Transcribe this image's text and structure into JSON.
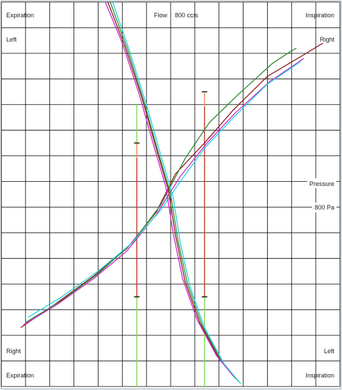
{
  "labels": {
    "top_left": "Expiration",
    "top_center_title": "Flow",
    "top_center_value": "800 cc/s",
    "top_right": "Inspiration",
    "left_upper": "Left",
    "right_upper": "Right",
    "pressure_title": "Pressure",
    "pressure_value": "800 Pa",
    "bottom_left_upper": "Right",
    "bottom_right_upper": "Left",
    "bottom_left": "Expiration",
    "bottom_right": "Inspiration"
  },
  "colors": {
    "background": "#ffffff",
    "grid": "#000000",
    "axis_minor": "#7ed957",
    "marker_red": "#cc2222",
    "marker_orange": "#ff9966",
    "marker_black": "#111111"
  },
  "chart_data": {
    "type": "line",
    "title": "",
    "xlabel": "Pressure",
    "ylabel": "Flow",
    "x_unit_per_division": "800 Pa",
    "y_unit_per_division": "800 cc/s",
    "grid": true,
    "x_divisions": 14,
    "y_divisions": 15,
    "x_range": [
      -7,
      7
    ],
    "y_range": [
      -7.5,
      7.5
    ],
    "series": [
      {
        "color": "#8b1a1a",
        "x": [
          -6.2,
          -4.8,
          -3.2,
          -1.8,
          -0.6,
          0.2,
          1.4,
          2.6,
          4.0,
          5.6,
          6.3
        ],
        "y": [
          -5.2,
          -4.3,
          -3.2,
          -2.1,
          -0.7,
          0.8,
          2.0,
          3.3,
          4.6,
          5.5,
          5.9
        ]
      },
      {
        "color": "#2e8b2e",
        "x": [
          -6.0,
          -4.6,
          -3.0,
          -1.6,
          -0.4,
          0.6,
          1.6,
          2.8,
          4.2,
          5.0,
          5.2
        ],
        "y": [
          -5.0,
          -4.2,
          -3.1,
          -1.9,
          -0.4,
          1.4,
          2.8,
          3.9,
          5.1,
          5.6,
          5.7
        ]
      },
      {
        "color": "#cc22cc",
        "x": [
          -6.1,
          -4.7,
          -3.2,
          -1.8,
          -0.6,
          0.4,
          1.5,
          2.7,
          4.1,
          5.2,
          5.5
        ],
        "y": [
          -5.1,
          -4.3,
          -3.3,
          -2.2,
          -0.8,
          0.7,
          2.0,
          3.2,
          4.4,
          5.1,
          5.3
        ]
      },
      {
        "color": "#22d0e0",
        "x": [
          -5.9,
          -4.5,
          -3.0,
          -1.6,
          -0.4,
          0.4,
          1.4,
          2.6,
          4.0,
          5.1,
          5.4
        ],
        "y": [
          -4.8,
          -4.0,
          -3.0,
          -1.9,
          -0.6,
          0.5,
          1.8,
          3.0,
          4.3,
          5.0,
          5.2
        ]
      },
      {
        "color": "#8b1a1a",
        "x": [
          -2.6,
          -1.9,
          -1.2,
          -0.6,
          -0.1,
          0.2,
          0.6,
          1.2,
          2.0,
          2.7
        ],
        "y": [
          7.5,
          5.8,
          3.8,
          1.8,
          0.2,
          -1.6,
          -3.4,
          -5.0,
          -6.4,
          -7.2
        ]
      },
      {
        "color": "#2e8b2e",
        "x": [
          -2.5,
          -1.8,
          -1.1,
          -0.5,
          0.0,
          0.3,
          0.7,
          1.3,
          2.1,
          2.8
        ],
        "y": [
          7.5,
          5.7,
          3.6,
          1.6,
          0.0,
          -1.8,
          -3.5,
          -5.1,
          -6.5,
          -7.3
        ]
      },
      {
        "color": "#cc22cc",
        "x": [
          -2.7,
          -2.0,
          -1.3,
          -0.7,
          -0.2,
          0.1,
          0.5,
          1.1,
          1.9,
          2.6
        ],
        "y": [
          7.5,
          5.9,
          3.9,
          1.9,
          0.3,
          -1.5,
          -3.3,
          -4.9,
          -6.3,
          -7.1
        ]
      },
      {
        "color": "#22d0e0",
        "x": [
          -2.4,
          -1.7,
          -1.0,
          -0.4,
          0.1,
          0.4,
          0.8,
          1.4,
          2.2,
          2.9
        ],
        "y": [
          7.5,
          5.6,
          3.5,
          1.5,
          -0.1,
          -1.9,
          -3.6,
          -5.2,
          -6.6,
          -7.4
        ]
      }
    ],
    "markers": [
      {
        "x": -1.4,
        "y_from": -4.0,
        "y_to": 2.0
      },
      {
        "x": 1.4,
        "y_from": -4.0,
        "y_to": 4.0
      }
    ]
  }
}
